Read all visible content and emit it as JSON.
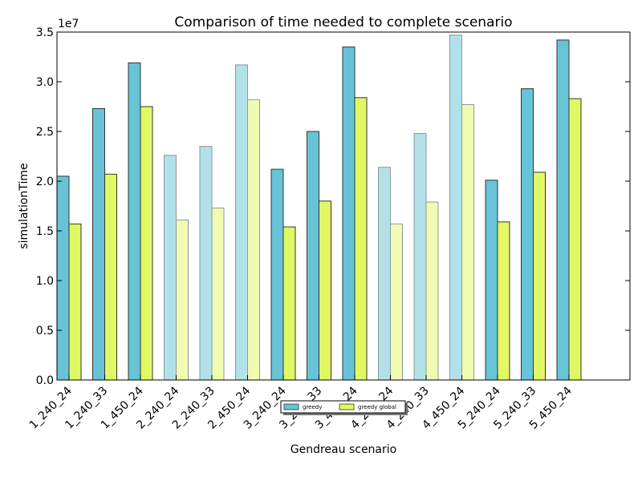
{
  "chart_data": {
    "type": "bar",
    "title": "Comparison of time needed to complete scenario",
    "xlabel": "Gendreau scenario",
    "ylabel": "simulationTime",
    "y_multiplier_label": "1e7",
    "ylim": [
      0,
      35000000
    ],
    "y_ticks": [
      0,
      5000000,
      10000000,
      15000000,
      20000000,
      25000000,
      30000000,
      35000000
    ],
    "y_tick_labels": [
      "0.0",
      "0.5",
      "1.0",
      "1.5",
      "2.0",
      "2.5",
      "3.0",
      "3.5"
    ],
    "categories": [
      "1_240_24",
      "1_240_33",
      "1_450_24",
      "2_240_24",
      "2_240_33",
      "2_450_24",
      "3_240_24",
      "3_240_33",
      "3_450_24",
      "4_240_24",
      "4_240_33",
      "4_450_24",
      "5_240_24",
      "5_240_33",
      "5_450_24"
    ],
    "faded": [
      false,
      false,
      false,
      true,
      true,
      true,
      false,
      false,
      false,
      true,
      true,
      true,
      false,
      false,
      false
    ],
    "series": [
      {
        "name": "greedy",
        "color": "#66c4d6",
        "faded_color": "#b3e1ea",
        "values": [
          20500000,
          27300000,
          31900000,
          22600000,
          23500000,
          31700000,
          21200000,
          25000000,
          33500000,
          21400000,
          24800000,
          34700000,
          20100000,
          29300000,
          34200000
        ]
      },
      {
        "name": "greedy global",
        "color": "#e1f864",
        "faded_color": "#f0fbb1",
        "values": [
          15700000,
          20700000,
          27500000,
          16100000,
          17300000,
          28200000,
          15400000,
          18000000,
          28400000,
          15700000,
          17900000,
          27700000,
          15900000,
          20900000,
          28300000
        ]
      }
    ],
    "grid": false,
    "legend_position": "bottom-center"
  }
}
